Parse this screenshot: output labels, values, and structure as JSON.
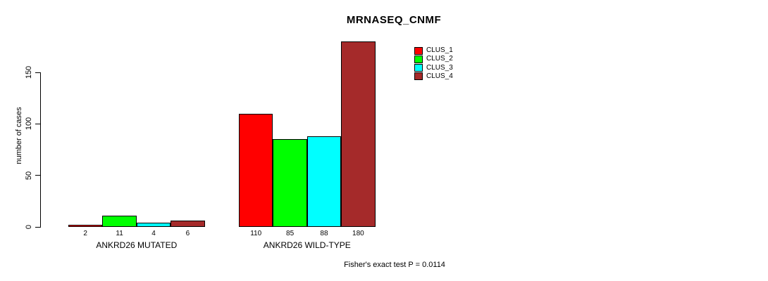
{
  "title": "MRNASEQ_CNMF",
  "footnote": "Fisher's exact test P = 0.0114",
  "chart_data": {
    "type": "bar",
    "title": "MRNASEQ_CNMF",
    "xlabel": "",
    "ylabel": "number of cases",
    "ylim": [
      0,
      150
    ],
    "yticks": [
      0,
      50,
      100,
      150
    ],
    "grid": false,
    "legend_position": "top-right",
    "categories": [
      "ANKRD26 MUTATED",
      "ANKRD26 WILD-TYPE"
    ],
    "series": [
      {
        "name": "CLUS_1",
        "color": "#ff0000",
        "values": [
          2,
          110
        ]
      },
      {
        "name": "CLUS_2",
        "color": "#00ff00",
        "values": [
          11,
          85
        ]
      },
      {
        "name": "CLUS_3",
        "color": "#00ffff",
        "values": [
          4,
          88
        ]
      },
      {
        "name": "CLUS_4",
        "color": "#a52a2a",
        "values": [
          6,
          180
        ]
      }
    ],
    "bar_value_labels": [
      [
        "2",
        "11",
        "4",
        "6"
      ],
      [
        "110",
        "85",
        "88",
        "180"
      ]
    ],
    "annotation": "Fisher's exact test P = 0.0114"
  }
}
